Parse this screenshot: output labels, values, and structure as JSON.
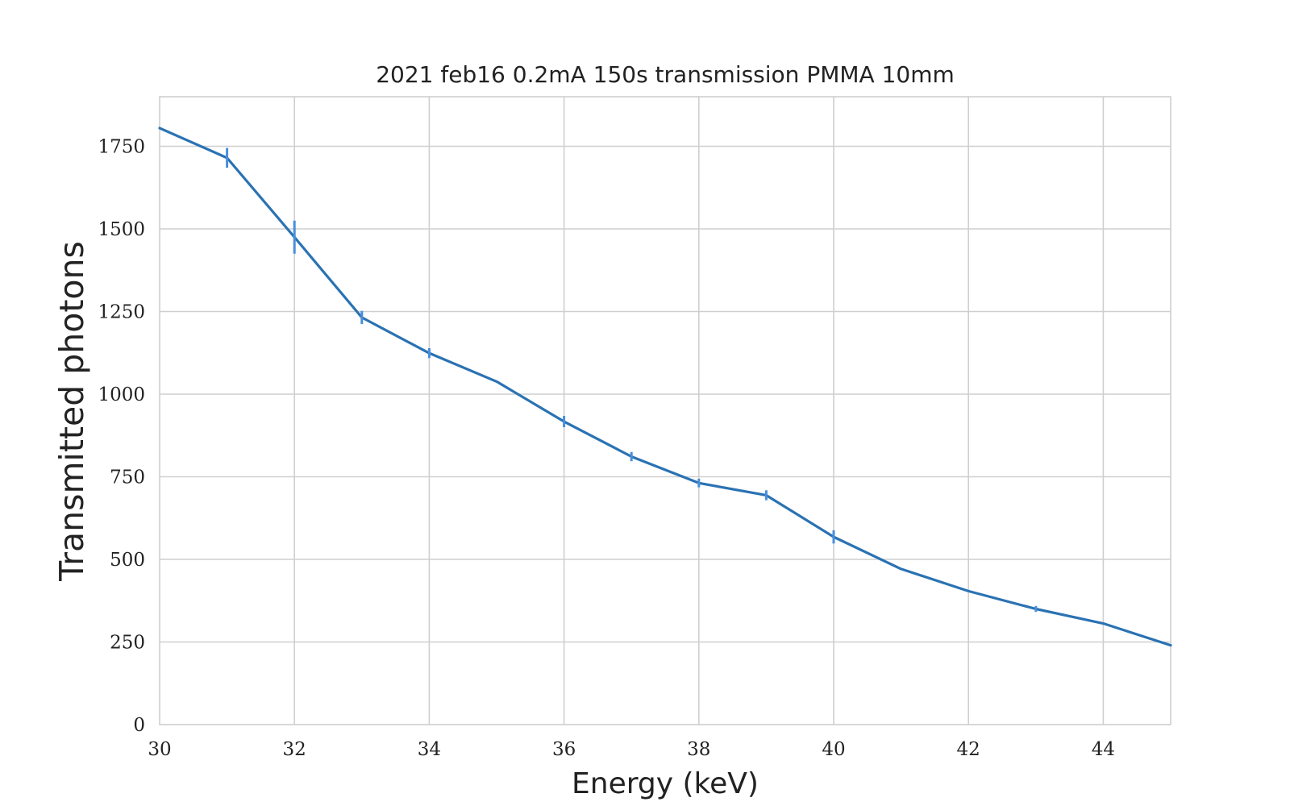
{
  "chart_data": {
    "type": "line",
    "title": "2021 feb16 0.2mA 150s transmission PMMA 10mm",
    "xlabel": "Energy (keV)",
    "ylabel": "Transmitted photons",
    "xlim": [
      30,
      45
    ],
    "ylim": [
      0,
      1900
    ],
    "x_ticks": [
      30,
      32,
      34,
      36,
      38,
      40,
      42,
      44
    ],
    "y_ticks": [
      0,
      250,
      500,
      750,
      1000,
      1250,
      1500,
      1750
    ],
    "x_tick_labels": [
      "30",
      "32",
      "34",
      "36",
      "38",
      "40",
      "42",
      "44"
    ],
    "y_tick_labels": [
      "0",
      "250",
      "500",
      "750",
      "1000",
      "1250",
      "1500",
      "1750"
    ],
    "grid": true,
    "legend": "none",
    "line_color": "#2a72b3",
    "errorbar_color": "#4a8edb",
    "series": [
      {
        "x": [
          30,
          31,
          32,
          33,
          34,
          35,
          36,
          37,
          38,
          39,
          40,
          41,
          42,
          43,
          44,
          45
        ],
        "values": [
          1805,
          1715,
          1475,
          1232,
          1124,
          1038,
          917,
          811,
          731,
          694,
          568,
          471,
          404,
          350,
          306,
          240
        ],
        "errors": [
          0,
          30,
          50,
          20,
          15,
          0,
          17,
          14,
          13,
          15,
          20,
          0,
          0,
          9,
          0,
          0
        ]
      }
    ]
  }
}
